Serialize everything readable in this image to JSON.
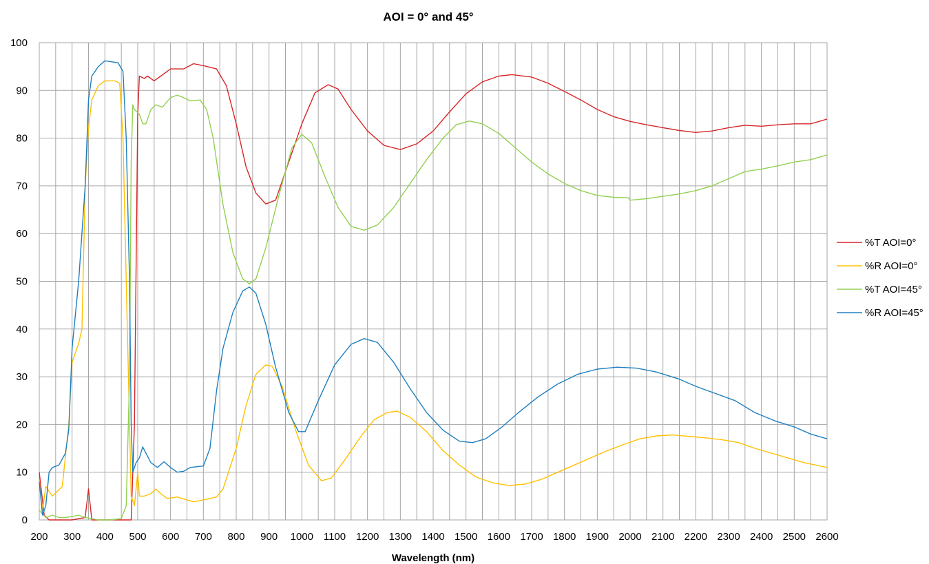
{
  "chart_data": {
    "type": "line",
    "title": "AOI = 0° and 45°",
    "xlabel": "Wavelength (nm)",
    "ylabel": "",
    "xlim": [
      200,
      2600
    ],
    "ylim": [
      0,
      100
    ],
    "x_ticks": [
      "200",
      "300",
      "400",
      "500",
      "600",
      "700",
      "800",
      "900",
      "1000",
      "1100",
      "1200",
      "1300",
      "1400",
      "1500",
      "1600",
      "1700",
      "1800",
      "1900",
      "2000",
      "2100",
      "2200",
      "2300",
      "2400",
      "2500",
      "2600"
    ],
    "y_ticks": [
      "0",
      "10",
      "20",
      "30",
      "40",
      "50",
      "60",
      "70",
      "80",
      "90",
      "100"
    ],
    "grid": true,
    "legend_position": "right",
    "series": [
      {
        "name": "%T AOI=0°",
        "color": "#d62728",
        "points": [
          [
            200,
            10
          ],
          [
            215,
            1
          ],
          [
            230,
            0
          ],
          [
            260,
            0
          ],
          [
            300,
            0
          ],
          [
            340,
            0.5
          ],
          [
            350,
            6.5
          ],
          [
            360,
            0
          ],
          [
            400,
            0
          ],
          [
            450,
            0
          ],
          [
            480,
            0
          ],
          [
            490,
            20
          ],
          [
            500,
            85
          ],
          [
            505,
            93
          ],
          [
            520,
            92.5
          ],
          [
            530,
            93
          ],
          [
            550,
            92
          ],
          [
            570,
            93
          ],
          [
            600,
            94.5
          ],
          [
            640,
            94.5
          ],
          [
            670,
            95.6
          ],
          [
            700,
            95.2
          ],
          [
            740,
            94.5
          ],
          [
            770,
            91
          ],
          [
            800,
            83
          ],
          [
            830,
            74
          ],
          [
            860,
            68.5
          ],
          [
            890,
            66.2
          ],
          [
            920,
            67
          ],
          [
            960,
            75
          ],
          [
            1000,
            83
          ],
          [
            1040,
            89.5
          ],
          [
            1080,
            91.2
          ],
          [
            1110,
            90.3
          ],
          [
            1150,
            86
          ],
          [
            1200,
            81.5
          ],
          [
            1250,
            78.5
          ],
          [
            1300,
            77.6
          ],
          [
            1350,
            78.8
          ],
          [
            1400,
            81.5
          ],
          [
            1450,
            85.5
          ],
          [
            1500,
            89.3
          ],
          [
            1550,
            91.8
          ],
          [
            1600,
            93
          ],
          [
            1640,
            93.3
          ],
          [
            1700,
            92.8
          ],
          [
            1750,
            91.5
          ],
          [
            1800,
            89.8
          ],
          [
            1850,
            88
          ],
          [
            1900,
            86
          ],
          [
            1950,
            84.5
          ],
          [
            2000,
            83.5
          ],
          [
            2050,
            82.8
          ],
          [
            2100,
            82.2
          ],
          [
            2150,
            81.6
          ],
          [
            2200,
            81.2
          ],
          [
            2250,
            81.5
          ],
          [
            2300,
            82.2
          ],
          [
            2350,
            82.7
          ],
          [
            2400,
            82.5
          ],
          [
            2450,
            82.8
          ],
          [
            2500,
            83
          ],
          [
            2550,
            83
          ],
          [
            2600,
            84
          ]
        ]
      },
      {
        "name": "%R AOI=0°",
        "color": "#ffc000",
        "points": [
          [
            200,
            8
          ],
          [
            210,
            2
          ],
          [
            220,
            7
          ],
          [
            240,
            5
          ],
          [
            270,
            7
          ],
          [
            290,
            20
          ],
          [
            300,
            33
          ],
          [
            320,
            37
          ],
          [
            330,
            40
          ],
          [
            340,
            70
          ],
          [
            350,
            82
          ],
          [
            360,
            88
          ],
          [
            380,
            91
          ],
          [
            400,
            92
          ],
          [
            430,
            92
          ],
          [
            445,
            91.5
          ],
          [
            455,
            80
          ],
          [
            465,
            50
          ],
          [
            475,
            20
          ],
          [
            480,
            5
          ],
          [
            490,
            3
          ],
          [
            500,
            10
          ],
          [
            505,
            5
          ],
          [
            520,
            5
          ],
          [
            540,
            5.5
          ],
          [
            555,
            6.5
          ],
          [
            570,
            5.5
          ],
          [
            590,
            4.5
          ],
          [
            620,
            4.8
          ],
          [
            650,
            4.2
          ],
          [
            670,
            3.8
          ],
          [
            700,
            4.2
          ],
          [
            740,
            4.8
          ],
          [
            760,
            6.5
          ],
          [
            800,
            15
          ],
          [
            830,
            24
          ],
          [
            860,
            30.5
          ],
          [
            890,
            32.5
          ],
          [
            910,
            32.2
          ],
          [
            940,
            28
          ],
          [
            980,
            19
          ],
          [
            1020,
            11.5
          ],
          [
            1060,
            8.2
          ],
          [
            1090,
            8.8
          ],
          [
            1130,
            12.5
          ],
          [
            1180,
            17.5
          ],
          [
            1220,
            21
          ],
          [
            1260,
            22.5
          ],
          [
            1290,
            22.8
          ],
          [
            1330,
            21.5
          ],
          [
            1380,
            18.5
          ],
          [
            1430,
            14.5
          ],
          [
            1480,
            11.5
          ],
          [
            1530,
            9
          ],
          [
            1580,
            7.8
          ],
          [
            1630,
            7.2
          ],
          [
            1680,
            7.5
          ],
          [
            1730,
            8.5
          ],
          [
            1780,
            10
          ],
          [
            1830,
            11.5
          ],
          [
            1880,
            13
          ],
          [
            1930,
            14.5
          ],
          [
            1980,
            15.8
          ],
          [
            2030,
            17
          ],
          [
            2080,
            17.6
          ],
          [
            2130,
            17.8
          ],
          [
            2180,
            17.5
          ],
          [
            2230,
            17.2
          ],
          [
            2280,
            16.8
          ],
          [
            2330,
            16.2
          ],
          [
            2380,
            15
          ],
          [
            2430,
            14
          ],
          [
            2480,
            13
          ],
          [
            2530,
            12
          ],
          [
            2600,
            11
          ]
        ]
      },
      {
        "name": "%T AOI=45°",
        "color": "#92d050",
        "points": [
          [
            200,
            2
          ],
          [
            220,
            0.5
          ],
          [
            240,
            1
          ],
          [
            260,
            0.5
          ],
          [
            280,
            0.5
          ],
          [
            300,
            0.7
          ],
          [
            320,
            1
          ],
          [
            340,
            0.5
          ],
          [
            360,
            0.3
          ],
          [
            380,
            0
          ],
          [
            420,
            0
          ],
          [
            450,
            0.3
          ],
          [
            465,
            3
          ],
          [
            475,
            30
          ],
          [
            480,
            75
          ],
          [
            485,
            87
          ],
          [
            490,
            86
          ],
          [
            505,
            85
          ],
          [
            515,
            83
          ],
          [
            525,
            83
          ],
          [
            540,
            86
          ],
          [
            555,
            87
          ],
          [
            575,
            86.5
          ],
          [
            600,
            88.5
          ],
          [
            620,
            89
          ],
          [
            640,
            88.5
          ],
          [
            660,
            87.8
          ],
          [
            690,
            88
          ],
          [
            710,
            86
          ],
          [
            730,
            80
          ],
          [
            760,
            66
          ],
          [
            790,
            56
          ],
          [
            820,
            50.5
          ],
          [
            840,
            49.5
          ],
          [
            860,
            50.5
          ],
          [
            890,
            57
          ],
          [
            930,
            68
          ],
          [
            970,
            78
          ],
          [
            1000,
            80.8
          ],
          [
            1030,
            79
          ],
          [
            1070,
            72
          ],
          [
            1110,
            65.5
          ],
          [
            1150,
            61.5
          ],
          [
            1190,
            60.7
          ],
          [
            1230,
            61.8
          ],
          [
            1280,
            65.5
          ],
          [
            1330,
            70.5
          ],
          [
            1380,
            75.5
          ],
          [
            1430,
            80
          ],
          [
            1470,
            82.8
          ],
          [
            1510,
            83.6
          ],
          [
            1550,
            83
          ],
          [
            1600,
            81
          ],
          [
            1650,
            78
          ],
          [
            1700,
            75
          ],
          [
            1750,
            72.5
          ],
          [
            1800,
            70.5
          ],
          [
            1850,
            69
          ],
          [
            1900,
            68
          ],
          [
            1950,
            67.6
          ],
          [
            1995,
            67.5
          ],
          [
            2000,
            67
          ],
          [
            2050,
            67.3
          ],
          [
            2100,
            67.8
          ],
          [
            2150,
            68.3
          ],
          [
            2200,
            69
          ],
          [
            2250,
            70
          ],
          [
            2300,
            71.5
          ],
          [
            2350,
            73
          ],
          [
            2400,
            73.5
          ],
          [
            2450,
            74.2
          ],
          [
            2500,
            75
          ],
          [
            2550,
            75.5
          ],
          [
            2600,
            76.5
          ]
        ]
      },
      {
        "name": "%R AOI=45°",
        "color": "#1f7fbf",
        "points": [
          [
            200,
            8
          ],
          [
            210,
            1
          ],
          [
            220,
            3
          ],
          [
            230,
            10
          ],
          [
            240,
            11
          ],
          [
            260,
            11.5
          ],
          [
            280,
            14
          ],
          [
            290,
            19
          ],
          [
            300,
            36
          ],
          [
            320,
            50
          ],
          [
            340,
            70
          ],
          [
            350,
            88
          ],
          [
            360,
            93
          ],
          [
            380,
            95
          ],
          [
            400,
            96.2
          ],
          [
            420,
            96
          ],
          [
            440,
            95.8
          ],
          [
            455,
            94
          ],
          [
            465,
            80
          ],
          [
            475,
            50
          ],
          [
            480,
            20
          ],
          [
            485,
            10
          ],
          [
            495,
            12
          ],
          [
            505,
            13
          ],
          [
            515,
            15.3
          ],
          [
            525,
            14
          ],
          [
            540,
            12
          ],
          [
            560,
            11
          ],
          [
            580,
            12.2
          ],
          [
            600,
            11
          ],
          [
            620,
            10
          ],
          [
            640,
            10.2
          ],
          [
            660,
            11
          ],
          [
            700,
            11.3
          ],
          [
            720,
            15
          ],
          [
            740,
            27
          ],
          [
            760,
            36
          ],
          [
            790,
            43.5
          ],
          [
            820,
            48
          ],
          [
            840,
            48.8
          ],
          [
            860,
            47.5
          ],
          [
            890,
            41
          ],
          [
            920,
            32
          ],
          [
            960,
            22.5
          ],
          [
            990,
            18.5
          ],
          [
            1010,
            18.5
          ],
          [
            1050,
            25
          ],
          [
            1100,
            32.5
          ],
          [
            1150,
            36.8
          ],
          [
            1190,
            38
          ],
          [
            1230,
            37.2
          ],
          [
            1280,
            33
          ],
          [
            1330,
            27.5
          ],
          [
            1380,
            22.5
          ],
          [
            1430,
            18.8
          ],
          [
            1480,
            16.5
          ],
          [
            1520,
            16.2
          ],
          [
            1560,
            17
          ],
          [
            1610,
            19.5
          ],
          [
            1660,
            22.5
          ],
          [
            1720,
            25.8
          ],
          [
            1780,
            28.5
          ],
          [
            1840,
            30.5
          ],
          [
            1900,
            31.6
          ],
          [
            1960,
            32
          ],
          [
            2020,
            31.8
          ],
          [
            2080,
            31
          ],
          [
            2150,
            29.5
          ],
          [
            2200,
            28
          ],
          [
            2260,
            26.5
          ],
          [
            2320,
            25
          ],
          [
            2380,
            22.5
          ],
          [
            2440,
            20.8
          ],
          [
            2500,
            19.5
          ],
          [
            2550,
            18
          ],
          [
            2600,
            17
          ]
        ]
      }
    ]
  }
}
